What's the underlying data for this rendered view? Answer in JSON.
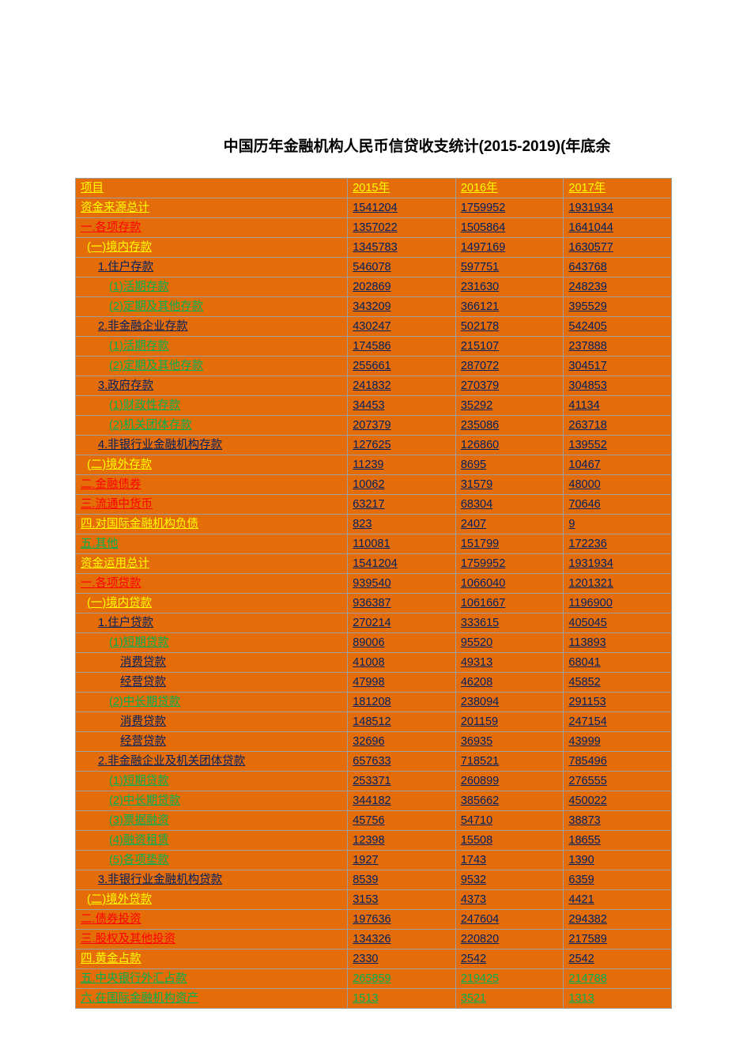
{
  "title": "中国历年金融机构人民币信贷收支统计(2015-2019)(年底余",
  "columns": [
    "项目",
    "2015年",
    "2016年",
    "2017年"
  ],
  "colors": {
    "header_bg": "#e46d0a",
    "yellow": "#ffff00",
    "red": "#ff0000",
    "blue": "#002060",
    "green": "#00b050",
    "border": "#9e9e9e"
  },
  "rows": [
    {
      "label": "资金来源总计",
      "style": "yellow",
      "indent": 0,
      "v": [
        "1541204",
        "1759952",
        "1931934"
      ],
      "dstyle": "blue"
    },
    {
      "label": "一.各项存款",
      "style": "red",
      "indent": 0,
      "v": [
        "1357022",
        "1505864",
        "1641044"
      ],
      "dstyle": "blue"
    },
    {
      "label": "(一)境内存款",
      "style": "yellow",
      "indent": 1,
      "v": [
        "1345783",
        "1497169",
        "1630577"
      ],
      "dstyle": "blue"
    },
    {
      "label": "1.住户存款",
      "style": "blue",
      "indent": 2,
      "v": [
        "546078",
        "597751",
        "643768"
      ],
      "dstyle": "blue"
    },
    {
      "label": "(1)活期存款",
      "style": "green",
      "indent": 3,
      "v": [
        "202869",
        "231630",
        "248239"
      ],
      "dstyle": "blue"
    },
    {
      "label": "(2)定期及其他存款",
      "style": "green",
      "indent": 3,
      "v": [
        "343209",
        "366121",
        "395529"
      ],
      "dstyle": "blue"
    },
    {
      "label": "2.非金融企业存款",
      "style": "blue",
      "indent": 2,
      "v": [
        "430247",
        "502178",
        "542405"
      ],
      "dstyle": "blue"
    },
    {
      "label": "(1)活期存款",
      "style": "green",
      "indent": 3,
      "v": [
        "174586",
        "215107",
        "237888"
      ],
      "dstyle": "blue"
    },
    {
      "label": "(2)定期及其他存款",
      "style": "green",
      "indent": 3,
      "v": [
        "255661",
        "287072",
        "304517"
      ],
      "dstyle": "blue"
    },
    {
      "label": "3.政府存款",
      "style": "blue",
      "indent": 2,
      "v": [
        "241832",
        "270379",
        "304853"
      ],
      "dstyle": "blue"
    },
    {
      "label": "(1)财政性存款",
      "style": "green",
      "indent": 3,
      "v": [
        "34453",
        "35292",
        "41134"
      ],
      "dstyle": "blue"
    },
    {
      "label": "(2)机关团体存款",
      "style": "green",
      "indent": 3,
      "v": [
        "207379",
        "235086",
        "263718"
      ],
      "dstyle": "blue"
    },
    {
      "label": "4.非银行业金融机构存款",
      "style": "blue",
      "indent": 2,
      "v": [
        "127625",
        "126860",
        "139552"
      ],
      "dstyle": "blue"
    },
    {
      "label": "(二)境外存款",
      "style": "yellow",
      "indent": 1,
      "v": [
        "11239",
        "8695",
        "10467"
      ],
      "dstyle": "blue"
    },
    {
      "label": "二.金融债券",
      "style": "red",
      "indent": 0,
      "v": [
        "10062",
        "31579",
        "48000"
      ],
      "dstyle": "blue"
    },
    {
      "label": "三.流通中货币",
      "style": "red",
      "indent": 0,
      "v": [
        "63217",
        "68304",
        "70646"
      ],
      "dstyle": "blue"
    },
    {
      "label": "四.对国际金融机构负债",
      "style": "yellow",
      "indent": 0,
      "v": [
        "823",
        "2407",
        "9"
      ],
      "dstyle": "blue"
    },
    {
      "label": "五.其他",
      "style": "green",
      "indent": 0,
      "v": [
        "110081",
        "151799",
        "172236"
      ],
      "dstyle": "blue"
    },
    {
      "label": "资金运用总计",
      "style": "yellow",
      "indent": 0,
      "v": [
        "1541204",
        "1759952",
        "1931934"
      ],
      "dstyle": "blue"
    },
    {
      "label": "一.各项贷款",
      "style": "red",
      "indent": 0,
      "v": [
        "939540",
        "1066040",
        "1201321"
      ],
      "dstyle": "blue"
    },
    {
      "label": "(一)境内贷款",
      "style": "yellow",
      "indent": 1,
      "v": [
        "936387",
        "1061667",
        "1196900"
      ],
      "dstyle": "blue"
    },
    {
      "label": "1.住户贷款",
      "style": "blue",
      "indent": 2,
      "v": [
        "270214",
        "333615",
        "405045"
      ],
      "dstyle": "blue"
    },
    {
      "label": "(1)短期贷款",
      "style": "green",
      "indent": 3,
      "v": [
        "89006",
        "95520",
        "113893"
      ],
      "dstyle": "blue"
    },
    {
      "label": "消费贷款",
      "style": "blue",
      "indent": 4,
      "v": [
        "41008",
        "49313",
        "68041"
      ],
      "dstyle": "blue"
    },
    {
      "label": "经营贷款",
      "style": "blue",
      "indent": 4,
      "v": [
        "47998",
        "46208",
        "45852"
      ],
      "dstyle": "blue"
    },
    {
      "label": "(2)中长期贷款",
      "style": "green",
      "indent": 3,
      "v": [
        "181208",
        "238094",
        "291153"
      ],
      "dstyle": "blue"
    },
    {
      "label": "消费贷款",
      "style": "blue",
      "indent": 4,
      "v": [
        "148512",
        "201159",
        "247154"
      ],
      "dstyle": "blue"
    },
    {
      "label": "经营贷款",
      "style": "blue",
      "indent": 4,
      "v": [
        "32696",
        "36935",
        "43999"
      ],
      "dstyle": "blue"
    },
    {
      "label": "2.非金融企业及机关团体贷款",
      "style": "blue",
      "indent": 2,
      "v": [
        "657633",
        "718521",
        "785496"
      ],
      "dstyle": "blue"
    },
    {
      "label": "(1)短期贷款",
      "style": "green",
      "indent": 3,
      "v": [
        "253371",
        "260899",
        "276555"
      ],
      "dstyle": "blue"
    },
    {
      "label": "(2)中长期贷款",
      "style": "green",
      "indent": 3,
      "v": [
        "344182",
        "385662",
        "450022"
      ],
      "dstyle": "blue"
    },
    {
      "label": "(3)票据融资",
      "style": "green",
      "indent": 3,
      "v": [
        "45756",
        "54710",
        "38873"
      ],
      "dstyle": "blue"
    },
    {
      "label": "(4)融资租赁",
      "style": "green",
      "indent": 3,
      "v": [
        "12398",
        "15508",
        "18655"
      ],
      "dstyle": "blue"
    },
    {
      "label": "(5)各项垫款",
      "style": "green",
      "indent": 3,
      "v": [
        "1927",
        "1743",
        "1390"
      ],
      "dstyle": "blue"
    },
    {
      "label": "3.非银行业金融机构贷款",
      "style": "blue",
      "indent": 2,
      "v": [
        "8539",
        "9532",
        "6359"
      ],
      "dstyle": "blue"
    },
    {
      "label": "(二)境外贷款",
      "style": "yellow",
      "indent": 1,
      "v": [
        "3153",
        "4373",
        "4421"
      ],
      "dstyle": "blue"
    },
    {
      "label": "二.债券投资",
      "style": "red",
      "indent": 0,
      "v": [
        "197636",
        "247604",
        "294382"
      ],
      "dstyle": "blue"
    },
    {
      "label": "三.股权及其他投资",
      "style": "red",
      "indent": 0,
      "v": [
        "134326",
        "220820",
        "217589"
      ],
      "dstyle": "blue"
    },
    {
      "label": "四.黄金占款",
      "style": "yellow",
      "indent": 0,
      "v": [
        "2330",
        "2542",
        "2542"
      ],
      "dstyle": "blue"
    },
    {
      "label": "五.中央银行外汇占款",
      "style": "green",
      "indent": 0,
      "v": [
        "265859",
        "219425",
        "214788"
      ],
      "dstyle": "green"
    },
    {
      "label": "六.在国际金融机构资产",
      "style": "green",
      "indent": 0,
      "v": [
        "1513",
        "3521",
        "1313"
      ],
      "dstyle": "green"
    }
  ]
}
